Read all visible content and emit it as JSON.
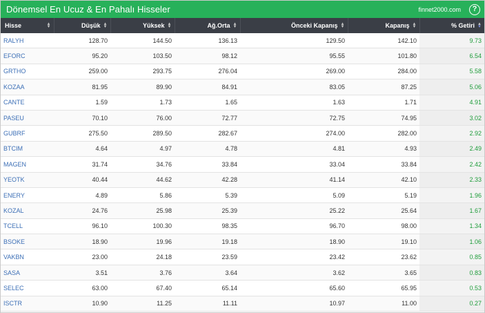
{
  "header": {
    "title": "Dönemsel En Ucuz & En Pahalı Hisseler",
    "brand": "finnet2000.com",
    "help_icon": "?"
  },
  "table": {
    "columns": [
      "Hisse",
      "Düşük",
      "Yüksek",
      "Ağ.Orta",
      "Önceki Kapanış",
      "Kapanış",
      "% Getiri"
    ],
    "rows": [
      {
        "hisse": "RALYH",
        "dusuk": "128.70",
        "yuksek": "144.50",
        "agorta": "136.13",
        "onceki": "129.50",
        "kapanis": "142.10",
        "getiri": "9.73"
      },
      {
        "hisse": "EFORC",
        "dusuk": "95.20",
        "yuksek": "103.50",
        "agorta": "98.12",
        "onceki": "95.55",
        "kapanis": "101.80",
        "getiri": "6.54"
      },
      {
        "hisse": "GRTHO",
        "dusuk": "259.00",
        "yuksek": "293.75",
        "agorta": "276.04",
        "onceki": "269.00",
        "kapanis": "284.00",
        "getiri": "5.58"
      },
      {
        "hisse": "KOZAA",
        "dusuk": "81.95",
        "yuksek": "89.90",
        "agorta": "84.91",
        "onceki": "83.05",
        "kapanis": "87.25",
        "getiri": "5.06"
      },
      {
        "hisse": "CANTE",
        "dusuk": "1.59",
        "yuksek": "1.73",
        "agorta": "1.65",
        "onceki": "1.63",
        "kapanis": "1.71",
        "getiri": "4.91"
      },
      {
        "hisse": "PASEU",
        "dusuk": "70.10",
        "yuksek": "76.00",
        "agorta": "72.77",
        "onceki": "72.75",
        "kapanis": "74.95",
        "getiri": "3.02"
      },
      {
        "hisse": "GUBRF",
        "dusuk": "275.50",
        "yuksek": "289.50",
        "agorta": "282.67",
        "onceki": "274.00",
        "kapanis": "282.00",
        "getiri": "2.92"
      },
      {
        "hisse": "BTCIM",
        "dusuk": "4.64",
        "yuksek": "4.97",
        "agorta": "4.78",
        "onceki": "4.81",
        "kapanis": "4.93",
        "getiri": "2.49"
      },
      {
        "hisse": "MAGEN",
        "dusuk": "31.74",
        "yuksek": "34.76",
        "agorta": "33.84",
        "onceki": "33.04",
        "kapanis": "33.84",
        "getiri": "2.42"
      },
      {
        "hisse": "YEOTK",
        "dusuk": "40.44",
        "yuksek": "44.62",
        "agorta": "42.28",
        "onceki": "41.14",
        "kapanis": "42.10",
        "getiri": "2.33"
      },
      {
        "hisse": "ENERY",
        "dusuk": "4.89",
        "yuksek": "5.86",
        "agorta": "5.39",
        "onceki": "5.09",
        "kapanis": "5.19",
        "getiri": "1.96"
      },
      {
        "hisse": "KOZAL",
        "dusuk": "24.76",
        "yuksek": "25.98",
        "agorta": "25.39",
        "onceki": "25.22",
        "kapanis": "25.64",
        "getiri": "1.67"
      },
      {
        "hisse": "TCELL",
        "dusuk": "96.10",
        "yuksek": "100.30",
        "agorta": "98.35",
        "onceki": "96.70",
        "kapanis": "98.00",
        "getiri": "1.34"
      },
      {
        "hisse": "BSOKE",
        "dusuk": "18.90",
        "yuksek": "19.96",
        "agorta": "19.18",
        "onceki": "18.90",
        "kapanis": "19.10",
        "getiri": "1.06"
      },
      {
        "hisse": "VAKBN",
        "dusuk": "23.00",
        "yuksek": "24.18",
        "agorta": "23.59",
        "onceki": "23.42",
        "kapanis": "23.62",
        "getiri": "0.85"
      },
      {
        "hisse": "SASA",
        "dusuk": "3.51",
        "yuksek": "3.76",
        "agorta": "3.64",
        "onceki": "3.62",
        "kapanis": "3.65",
        "getiri": "0.83"
      },
      {
        "hisse": "SELEC",
        "dusuk": "63.00",
        "yuksek": "67.40",
        "agorta": "65.14",
        "onceki": "65.60",
        "kapanis": "65.95",
        "getiri": "0.53"
      },
      {
        "hisse": "ISCTR",
        "dusuk": "10.90",
        "yuksek": "11.25",
        "agorta": "11.11",
        "onceki": "10.97",
        "kapanis": "11.00",
        "getiri": "0.27"
      }
    ]
  },
  "colors": {
    "title_bar": "#27b15a",
    "header_bg": "#3a3e46",
    "symbol_link": "#3c6fb6",
    "positive_return": "#1f9d3b"
  }
}
